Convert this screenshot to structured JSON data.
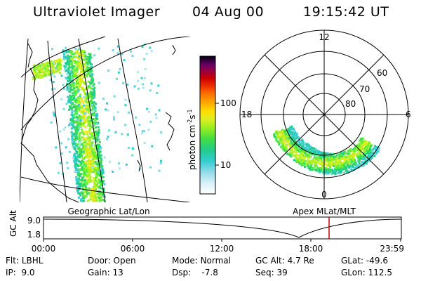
{
  "header": {
    "title": "Ultraviolet Imager",
    "date": "04 Aug 00",
    "time": "19:15:42 UT"
  },
  "colorbar": {
    "label_main": "photon cm",
    "label_exp1": "-2",
    "label_mid": "s",
    "label_exp2": "-1",
    "ticks": [
      "100",
      "10"
    ],
    "colors": [
      "#ffffff",
      "#d8f0f8",
      "#a8e4f0",
      "#70d8e0",
      "#33ccd0",
      "#22cc88",
      "#33dd55",
      "#66ee33",
      "#aaf022",
      "#ddee22",
      "#ffdd00",
      "#ffaa00",
      "#ff7700",
      "#ee3300",
      "#cc0000",
      "#aa0030",
      "#880055",
      "#550066",
      "#220044",
      "#000010"
    ]
  },
  "geographic_panel": {
    "label": "Geographic Lat/Lon"
  },
  "polar_panel": {
    "label": "Apex MLat/MLT",
    "mlt_labels": {
      "top": "12",
      "left": "18",
      "right": "6",
      "bottom": "0"
    },
    "lat_labels": [
      "60",
      "70",
      "80"
    ]
  },
  "orbit_plot": {
    "ylabel": "GC Alt",
    "yticks": [
      "9.0",
      "1.8"
    ],
    "xticks": [
      "00:00",
      "06:00",
      "12:00",
      "18:00",
      "23:59"
    ],
    "current_time_marker": "19:15:42",
    "marker_color": "#cc0000"
  },
  "status": {
    "row1": [
      {
        "label": "Flt:",
        "value": "LBHL"
      },
      {
        "label": "Door:",
        "value": "Open"
      },
      {
        "label": "Mode:",
        "value": "Normal"
      },
      {
        "label": "GC Alt:",
        "value": "4.7 Re"
      },
      {
        "label": "GLat:",
        "value": "-49.6"
      }
    ],
    "row2": [
      {
        "label": "IP:",
        "value": "9.0"
      },
      {
        "label": "Gain:",
        "value": "13"
      },
      {
        "label": "Dsp:",
        "value": "-7.8"
      },
      {
        "label": "Seq:",
        "value": "39"
      },
      {
        "label": "GLon:",
        "value": "112.5"
      }
    ]
  }
}
